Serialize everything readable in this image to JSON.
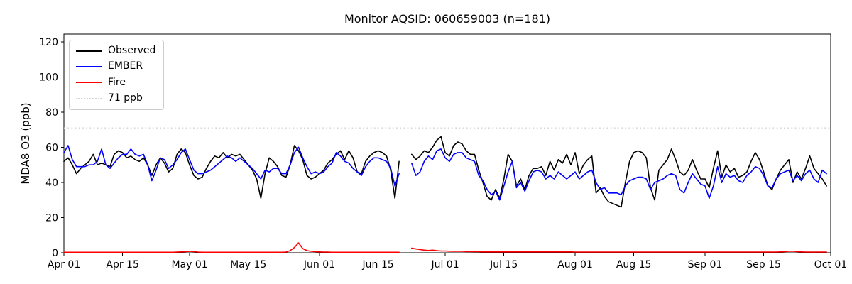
{
  "chart_data": {
    "type": "line",
    "title": "Monitor AQSID: 060659003 (n=181)",
    "xlabel": "",
    "ylabel": "MDA8 O3 (ppb)",
    "ylim": [
      0,
      124.4
    ],
    "y_ticks": [
      0,
      20,
      40,
      60,
      80,
      100,
      120
    ],
    "x_tick_labels": [
      "Apr 01",
      "Apr 15",
      "May 01",
      "May 15",
      "Jun 01",
      "Jun 15",
      "Jul 01",
      "Jul 15",
      "Aug 01",
      "Aug 15",
      "Sep 01",
      "Sep 15",
      "Oct 01"
    ],
    "x_tick_days": [
      0,
      14,
      30,
      44,
      61,
      75,
      91,
      105,
      122,
      136,
      153,
      167,
      183
    ],
    "total_days": 183,
    "grid": false,
    "legend_position": "upper left",
    "n_observations": 181,
    "threshold": {
      "label": "71 ppb",
      "value": 71,
      "color": "#d3d3d3",
      "style": "dotted"
    },
    "series": [
      {
        "name": "Observed",
        "color": "#000000",
        "values": [
          52,
          54,
          50,
          45,
          48,
          50,
          52,
          56,
          50,
          51,
          50,
          49,
          56,
          58,
          57,
          54,
          55,
          53,
          52,
          54,
          50,
          44,
          50,
          54,
          51,
          46,
          48,
          56,
          59,
          57,
          50,
          44,
          42,
          43,
          48,
          52,
          55,
          54,
          57,
          54,
          56,
          55,
          56,
          53,
          50,
          47,
          42,
          31,
          45,
          54,
          52,
          49,
          44,
          43,
          50,
          61,
          58,
          53,
          44,
          42,
          43,
          45,
          47,
          51,
          53,
          56,
          58,
          53,
          58,
          54,
          46,
          45,
          52,
          55,
          57,
          58,
          57,
          55,
          47,
          31,
          52,
          null,
          null,
          56,
          53,
          55,
          58,
          57,
          60,
          64,
          66,
          57,
          55,
          61,
          63,
          62,
          58,
          56,
          56,
          47,
          40,
          32,
          30,
          36,
          31,
          42,
          56,
          52,
          38,
          42,
          36,
          44,
          48,
          48,
          49,
          44,
          52,
          47,
          53,
          51,
          56,
          50,
          57,
          45,
          50,
          53,
          55,
          34,
          37,
          32,
          29,
          28,
          27,
          26,
          40,
          52,
          57,
          58,
          57,
          54,
          37,
          30,
          47,
          50,
          53,
          59,
          53,
          46,
          44,
          47,
          53,
          47,
          42,
          42,
          37,
          48,
          58,
          43,
          50,
          46,
          48,
          43,
          44,
          46,
          52,
          57,
          53,
          46,
          38,
          36,
          42,
          47,
          50,
          53,
          40,
          46,
          42,
          48,
          55,
          48,
          45,
          42,
          38
        ]
      },
      {
        "name": "EMBER",
        "color": "#0000ff",
        "values": [
          57,
          61,
          53,
          49,
          49,
          49,
          50,
          50,
          52,
          59,
          50,
          48,
          51,
          54,
          56,
          56,
          59,
          56,
          55,
          56,
          50,
          41,
          47,
          54,
          53,
          48,
          50,
          53,
          57,
          59,
          53,
          47,
          45,
          45,
          46,
          47,
          49,
          51,
          53,
          55,
          54,
          52,
          54,
          52,
          50,
          48,
          45,
          42,
          47,
          46,
          48,
          48,
          45,
          45,
          50,
          57,
          60,
          54,
          49,
          45,
          46,
          45,
          46,
          49,
          51,
          57,
          55,
          52,
          51,
          48,
          46,
          44,
          49,
          52,
          54,
          54,
          53,
          52,
          48,
          38,
          45,
          null,
          null,
          51,
          44,
          46,
          52,
          55,
          53,
          58,
          59,
          54,
          52,
          56,
          57,
          57,
          54,
          53,
          52,
          44,
          41,
          36,
          33,
          35,
          30,
          38,
          46,
          52,
          37,
          40,
          35,
          41,
          46,
          47,
          46,
          42,
          44,
          42,
          46,
          44,
          42,
          44,
          46,
          42,
          44,
          46,
          47,
          40,
          36,
          37,
          34,
          34,
          34,
          33,
          38,
          41,
          42,
          43,
          43,
          42,
          36,
          40,
          41,
          42,
          44,
          45,
          44,
          36,
          34,
          40,
          45,
          42,
          39,
          38,
          31,
          38,
          49,
          40,
          45,
          43,
          44,
          41,
          40,
          44,
          46,
          49,
          48,
          44,
          38,
          37,
          42,
          45,
          46,
          47,
          41,
          44,
          41,
          45,
          47,
          42,
          40,
          47,
          45
        ]
      },
      {
        "name": "Fire",
        "color": "#ff0000",
        "values": [
          0.3,
          0.3,
          0.3,
          0.3,
          0.3,
          0.3,
          0.3,
          0.3,
          0.3,
          0.3,
          0.3,
          0.3,
          0.3,
          0.3,
          0.3,
          0.3,
          0.3,
          0.3,
          0.3,
          0.3,
          0.3,
          0.3,
          0.3,
          0.3,
          0.3,
          0.3,
          0.3,
          0.4,
          0.5,
          0.6,
          0.8,
          0.6,
          0.4,
          0.3,
          0.3,
          0.3,
          0.3,
          0.3,
          0.3,
          0.3,
          0.3,
          0.3,
          0.3,
          0.3,
          0.3,
          0.3,
          0.3,
          0.3,
          0.3,
          0.3,
          0.3,
          0.3,
          0.3,
          0.4,
          1.2,
          3.0,
          5.6,
          2.4,
          1.2,
          0.8,
          0.6,
          0.5,
          0.4,
          0.4,
          0.3,
          0.3,
          0.3,
          0.3,
          0.3,
          0.3,
          0.3,
          0.3,
          0.3,
          0.3,
          0.3,
          0.3,
          0.3,
          0.3,
          0.3,
          0.3,
          0.3,
          null,
          null,
          2.6,
          2.2,
          1.8,
          1.5,
          1.3,
          1.5,
          1.2,
          1.0,
          1.0,
          0.9,
          0.8,
          0.9,
          0.8,
          0.7,
          0.7,
          0.6,
          0.6,
          0.5,
          0.5,
          0.5,
          0.5,
          0.5,
          0.5,
          0.5,
          0.5,
          0.5,
          0.5,
          0.5,
          0.5,
          0.5,
          0.5,
          0.5,
          0.5,
          0.5,
          0.5,
          0.5,
          0.5,
          0.5,
          0.5,
          0.4,
          0.4,
          0.4,
          0.4,
          0.4,
          0.4,
          0.4,
          0.4,
          0.4,
          0.4,
          0.4,
          0.4,
          0.4,
          0.4,
          0.4,
          0.4,
          0.4,
          0.4,
          0.4,
          0.4,
          0.4,
          0.4,
          0.4,
          0.4,
          0.4,
          0.4,
          0.4,
          0.4,
          0.4,
          0.4,
          0.4,
          0.4,
          0.4,
          0.4,
          0.4,
          0.4,
          0.4,
          0.4,
          0.4,
          0.4,
          0.4,
          0.4,
          0.4,
          0.4,
          0.4,
          0.4,
          0.4,
          0.4,
          0.4,
          0.5,
          0.6,
          0.8,
          0.9,
          0.6,
          0.5,
          0.4,
          0.4,
          0.4,
          0.4,
          0.4,
          0.4
        ]
      }
    ]
  }
}
